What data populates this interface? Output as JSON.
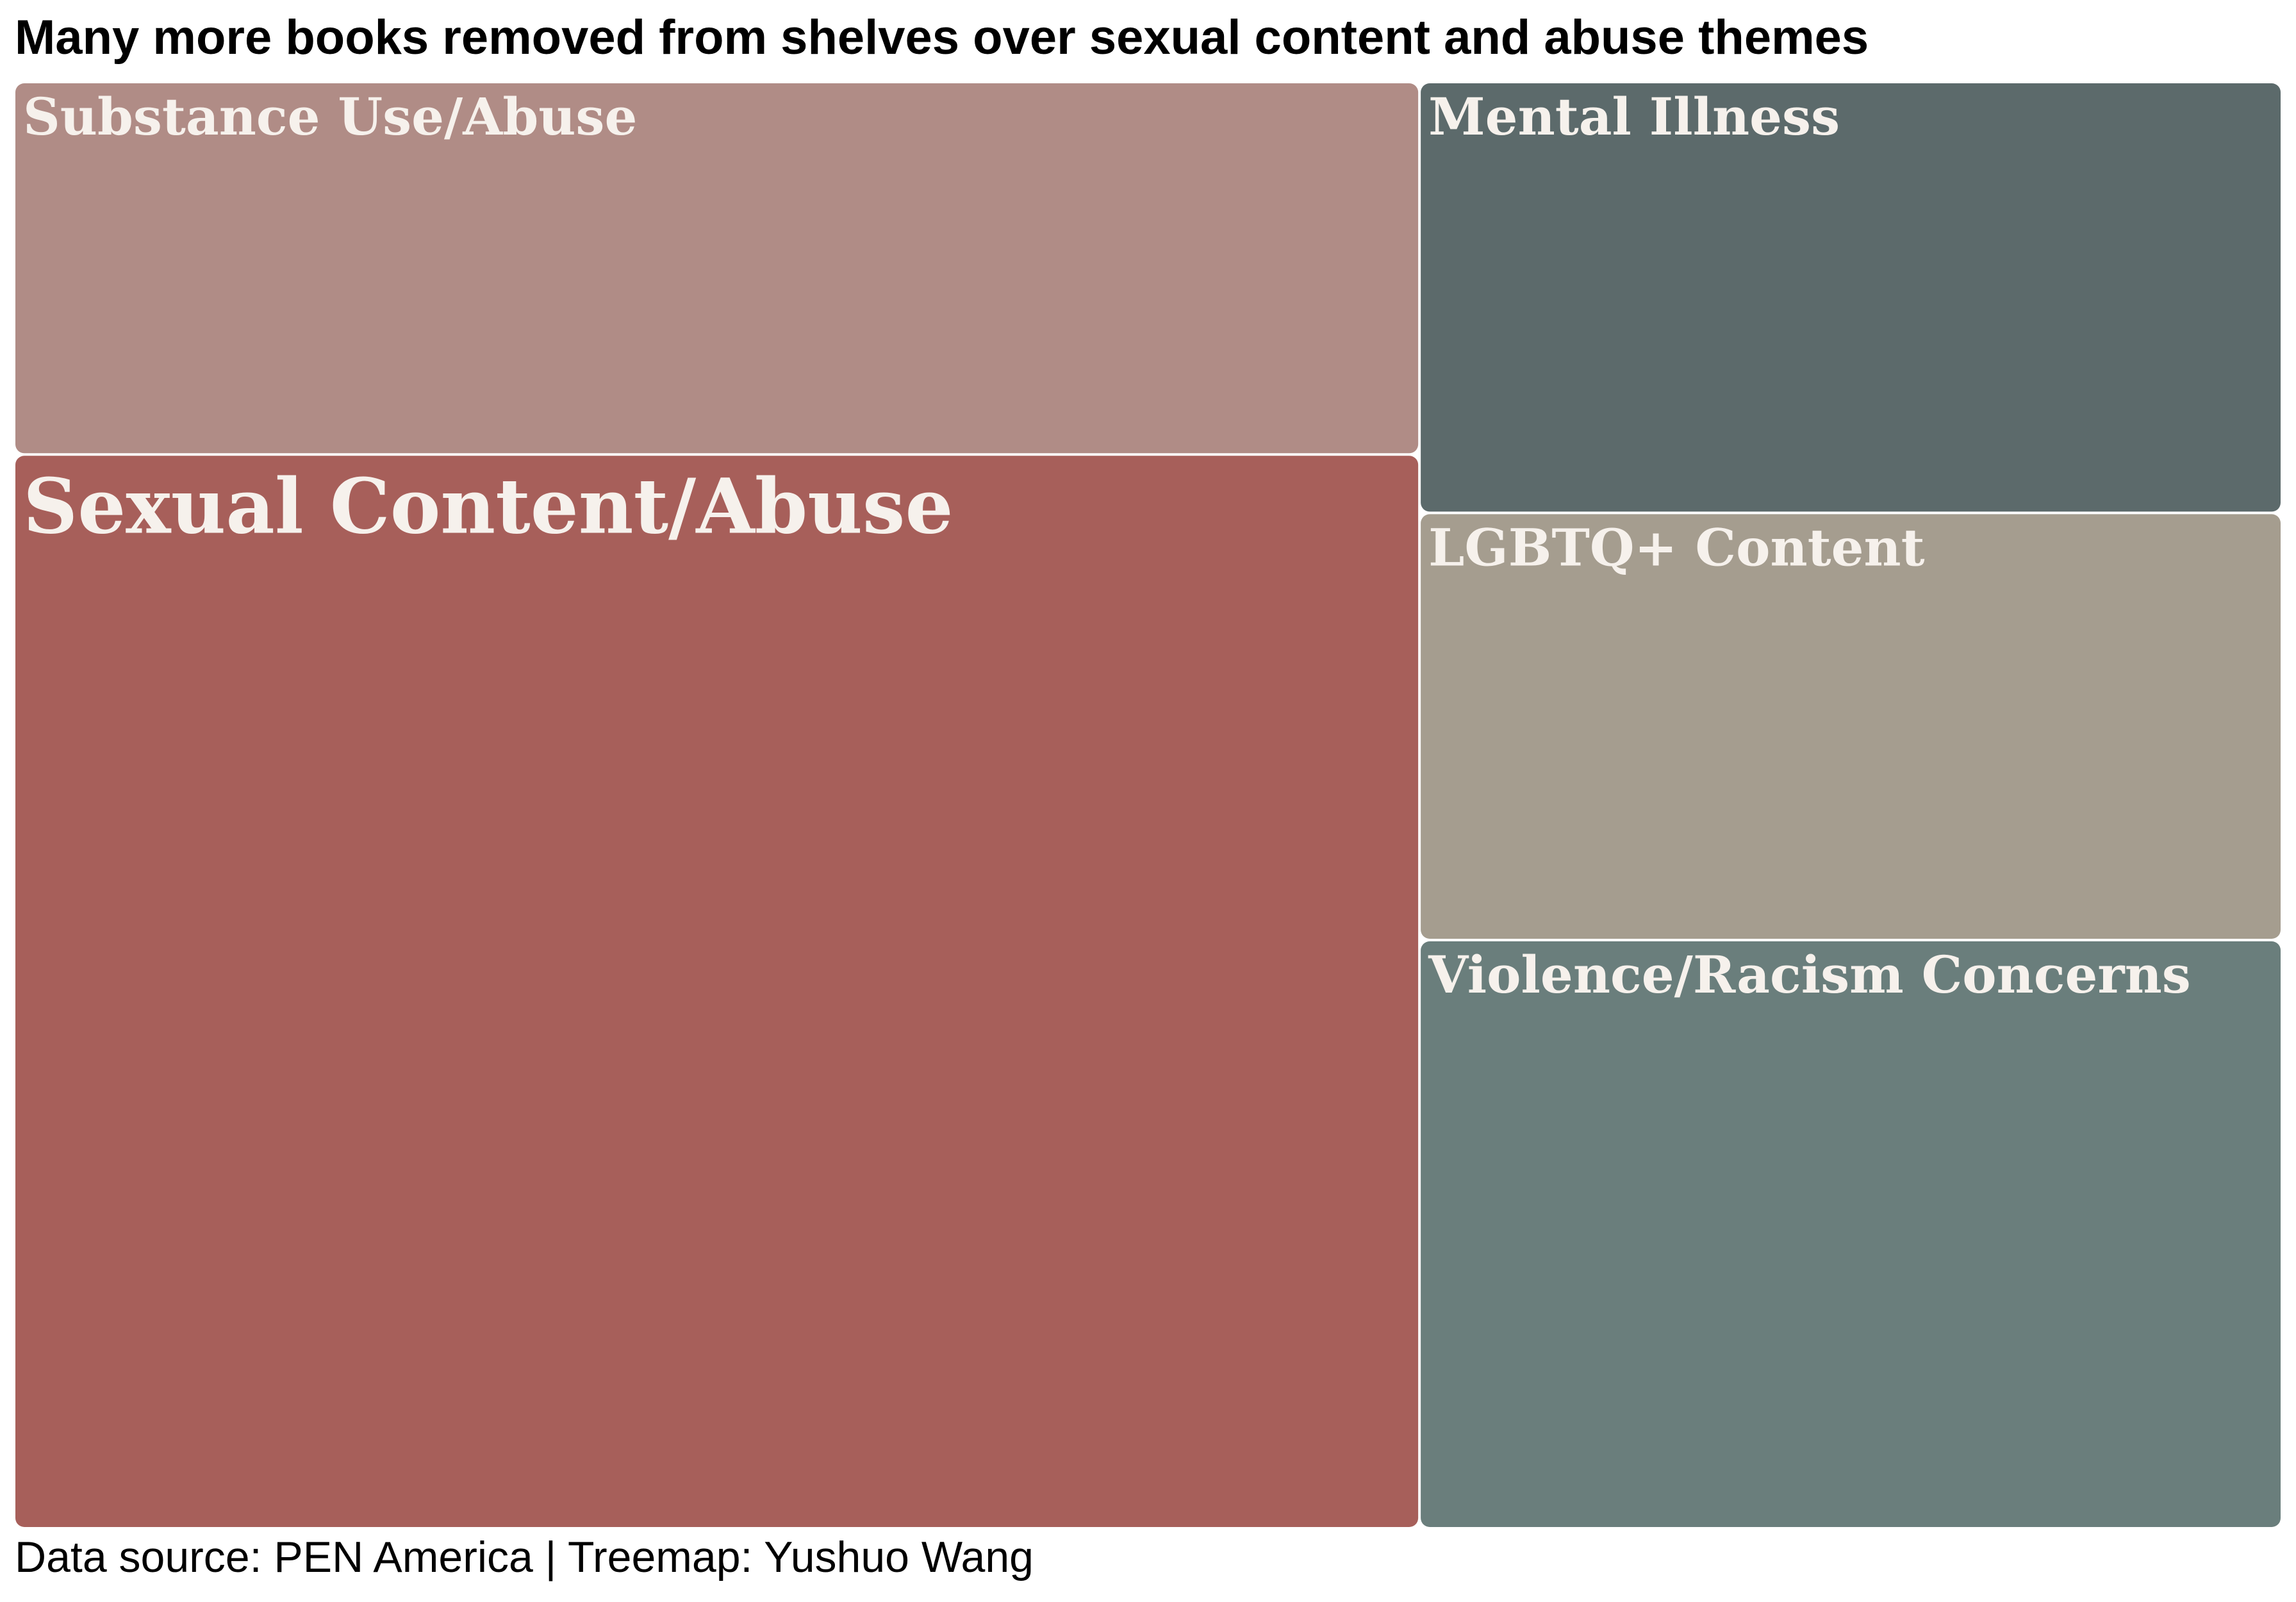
{
  "chart_data": {
    "type": "treemap",
    "title": "Many more books removed from shelves over sexual content and abuse themes",
    "caption": "Data source: PEN America | Treemap: Yushuo Wang",
    "items": [
      {
        "label": "Sexual Content/Abuse",
        "share": 0.467,
        "color": "#a75f5a"
      },
      {
        "label": "Substance Use/Abuse",
        "share": 0.162,
        "color": "#b08c86"
      },
      {
        "label": "Mental Illness",
        "share": 0.115,
        "color": "#5c6a6b"
      },
      {
        "label": "LGBTQ+ Content",
        "share": 0.114,
        "color": "#a59d8f"
      },
      {
        "label": "Violence/Racism Concerns",
        "share": 0.157,
        "color": "#6a7e7c"
      }
    ]
  }
}
